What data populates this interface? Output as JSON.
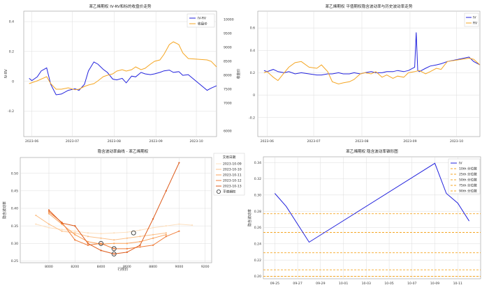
{
  "chart_data": [
    {
      "type": "line",
      "title": "苯乙烯期权 IV-RV和标的收盘价走势",
      "xlabel": "",
      "ylabel": "IV-RV",
      "y2label": "收盘价",
      "x_ticks": [
        "2023-06",
        "2023-07",
        "2023-08",
        "2023-09",
        "2023-10"
      ],
      "y_ticks": [
        -0.2,
        0,
        0.2,
        0.4
      ],
      "y2_ticks": [
        6000,
        7000,
        7500,
        8000,
        8500,
        9000,
        9500,
        10000
      ],
      "ylim": [
        -0.37,
        0.47
      ],
      "y2lim": [
        5800,
        10300
      ],
      "xlim": [
        "2023-05-26",
        "2023-10-16"
      ],
      "legend": "top-right",
      "series": [
        {
          "name": "IV-RV",
          "axis": "left",
          "color": "#2222dd",
          "x": [
            "2023-05-30",
            "2023-06-01",
            "2023-06-05",
            "2023-06-08",
            "2023-06-12",
            "2023-06-15",
            "2023-06-19",
            "2023-06-23",
            "2023-06-28",
            "2023-07-03",
            "2023-07-06",
            "2023-07-10",
            "2023-07-13",
            "2023-07-17",
            "2023-07-20",
            "2023-07-24",
            "2023-07-27",
            "2023-07-31",
            "2023-08-03",
            "2023-08-07",
            "2023-08-10",
            "2023-08-14",
            "2023-08-17",
            "2023-08-21",
            "2023-08-24",
            "2023-08-28",
            "2023-08-31",
            "2023-09-04",
            "2023-09-07",
            "2023-09-11",
            "2023-09-14",
            "2023-09-18",
            "2023-09-21",
            "2023-09-25",
            "2023-10-09",
            "2023-10-12",
            "2023-10-16"
          ],
          "values": [
            0.02,
            0.005,
            0.03,
            0.07,
            0.09,
            -0.02,
            -0.09,
            -0.085,
            -0.06,
            -0.05,
            -0.06,
            -0.02,
            0.07,
            0.13,
            0.115,
            0.08,
            0.06,
            0.015,
            0.01,
            0.02,
            -0.01,
            0.035,
            0.03,
            0.06,
            0.05,
            0.045,
            0.05,
            0.06,
            0.07,
            0.075,
            0.06,
            0.065,
            0.04,
            0.045,
            -0.06,
            -0.045,
            -0.03
          ]
        },
        {
          "name": "收盘价",
          "axis": "right",
          "color": "#f5a623",
          "x": [
            "2023-05-30",
            "2023-06-05",
            "2023-06-12",
            "2023-06-15",
            "2023-06-19",
            "2023-06-23",
            "2023-06-28",
            "2023-07-03",
            "2023-07-06",
            "2023-07-10",
            "2023-07-13",
            "2023-07-17",
            "2023-07-20",
            "2023-07-24",
            "2023-07-27",
            "2023-07-31",
            "2023-08-03",
            "2023-08-07",
            "2023-08-10",
            "2023-08-14",
            "2023-08-17",
            "2023-08-21",
            "2023-08-24",
            "2023-08-28",
            "2023-08-31",
            "2023-09-04",
            "2023-09-07",
            "2023-09-11",
            "2023-09-14",
            "2023-09-18",
            "2023-09-21",
            "2023-09-25",
            "2023-10-09",
            "2023-10-12",
            "2023-10-16"
          ],
          "values": [
            7700,
            7800,
            7950,
            7700,
            7500,
            7500,
            7550,
            7480,
            7500,
            7600,
            7650,
            7700,
            7800,
            7950,
            8000,
            8050,
            8150,
            8200,
            8150,
            8200,
            8300,
            8200,
            8250,
            8400,
            8500,
            8550,
            8750,
            9100,
            9200,
            9100,
            8800,
            8600,
            8550,
            8500,
            8300
          ]
        }
      ]
    },
    {
      "type": "line",
      "title": "苯乙烯期权 平值期权隐含波动率与历史波动率走势",
      "xlabel": "",
      "ylabel": "",
      "x_ticks": [
        "2023-06",
        "2023-07",
        "2023-08",
        "2023-09",
        "2023-10"
      ],
      "y_ticks": [
        -0.2,
        0,
        0.2,
        0.4,
        0.6
      ],
      "ylim": [
        -0.37,
        0.75
      ],
      "xlim": [
        "2023-05-26",
        "2023-10-16"
      ],
      "legend": "top-right",
      "series": [
        {
          "name": "IV",
          "color": "#2222dd",
          "x": [
            "2023-05-30",
            "2023-06-01",
            "2023-06-05",
            "2023-06-08",
            "2023-06-12",
            "2023-06-15",
            "2023-06-19",
            "2023-06-23",
            "2023-06-28",
            "2023-07-03",
            "2023-07-06",
            "2023-07-10",
            "2023-07-13",
            "2023-07-17",
            "2023-07-20",
            "2023-07-24",
            "2023-07-27",
            "2023-07-31",
            "2023-08-03",
            "2023-08-07",
            "2023-08-10",
            "2023-08-14",
            "2023-08-17",
            "2023-08-21",
            "2023-08-24",
            "2023-08-28",
            "2023-08-31",
            "2023-09-04",
            "2023-09-05",
            "2023-09-06",
            "2023-09-07",
            "2023-09-11",
            "2023-09-14",
            "2023-09-18",
            "2023-09-21",
            "2023-09-25",
            "2023-10-09",
            "2023-10-12",
            "2023-10-16"
          ],
          "values": [
            0.22,
            0.21,
            0.23,
            0.21,
            0.2,
            0.21,
            0.19,
            0.2,
            0.19,
            0.18,
            0.18,
            0.19,
            0.19,
            0.2,
            0.19,
            0.19,
            0.2,
            0.19,
            0.2,
            0.21,
            0.2,
            0.2,
            0.21,
            0.21,
            0.22,
            0.21,
            0.22,
            0.25,
            0.56,
            0.22,
            0.21,
            0.24,
            0.26,
            0.27,
            0.28,
            0.3,
            0.34,
            0.3,
            0.27
          ]
        },
        {
          "name": "RV",
          "color": "#f5a623",
          "x": [
            "2023-05-30",
            "2023-06-01",
            "2023-06-05",
            "2023-06-08",
            "2023-06-12",
            "2023-06-15",
            "2023-06-19",
            "2023-06-23",
            "2023-06-28",
            "2023-07-03",
            "2023-07-06",
            "2023-07-10",
            "2023-07-13",
            "2023-07-17",
            "2023-07-20",
            "2023-07-24",
            "2023-07-27",
            "2023-07-31",
            "2023-08-03",
            "2023-08-07",
            "2023-08-10",
            "2023-08-14",
            "2023-08-17",
            "2023-08-21",
            "2023-08-24",
            "2023-08-28",
            "2023-08-31",
            "2023-09-04",
            "2023-09-07",
            "2023-09-11",
            "2023-09-14",
            "2023-09-18",
            "2023-09-21",
            "2023-09-25",
            "2023-10-09",
            "2023-10-12",
            "2023-10-16"
          ],
          "values": [
            0.2,
            0.21,
            0.16,
            0.13,
            0.2,
            0.25,
            0.29,
            0.3,
            0.25,
            0.24,
            0.27,
            0.21,
            0.12,
            0.1,
            0.11,
            0.12,
            0.14,
            0.19,
            0.2,
            0.19,
            0.21,
            0.16,
            0.18,
            0.15,
            0.17,
            0.16,
            0.2,
            0.21,
            0.22,
            0.19,
            0.21,
            0.24,
            0.23,
            0.3,
            0.33,
            0.32,
            0.27
          ]
        }
      ]
    },
    {
      "type": "line",
      "title": "隐含波动率曲线 - 苯乙烯期权",
      "xlabel": "行权价",
      "ylabel": "隐含波动率",
      "x_ticks": [
        8000,
        8200,
        8400,
        8600,
        8800,
        9000,
        9200
      ],
      "y_ticks": [
        0.25,
        0.3,
        0.35,
        0.4,
        0.45,
        0.5
      ],
      "xlim": [
        7780,
        9250
      ],
      "ylim": [
        0.245,
        0.545
      ],
      "legend": "right-outside",
      "legend_title": "交易日期",
      "series": [
        {
          "name": "2023-10-09",
          "color": "#fde0c0",
          "x": [
            7900,
            8000,
            8100,
            8200,
            8300,
            8400,
            8500,
            8600,
            8700,
            8800,
            8900,
            9000,
            9100
          ],
          "values": [
            0.355,
            0.345,
            0.34,
            0.335,
            0.33,
            0.328,
            0.33,
            0.332,
            0.338,
            0.345,
            0.35,
            0.355,
            0.352
          ]
        },
        {
          "name": "2023-10-10",
          "color": "#fcc18a",
          "x": [
            7900,
            8000,
            8100,
            8200,
            8300,
            8400,
            8500,
            8600,
            8700,
            8800,
            8900
          ],
          "values": [
            0.38,
            0.355,
            0.335,
            0.33,
            0.32,
            0.315,
            0.31,
            0.315,
            0.32,
            0.325,
            0.33
          ]
        },
        {
          "name": "2023-10-11",
          "color": "#f9a15a",
          "x": [
            8000,
            8100,
            8200,
            8300,
            8400,
            8500,
            8600,
            8700,
            8800,
            8900
          ],
          "values": [
            0.385,
            0.355,
            0.325,
            0.305,
            0.298,
            0.3,
            0.3,
            0.305,
            0.315,
            0.325
          ]
        },
        {
          "name": "2023-10-12",
          "color": "#ef7d3a",
          "x": [
            8000,
            8100,
            8200,
            8300,
            8400,
            8500,
            8600,
            8700,
            8800,
            8900,
            9000
          ],
          "values": [
            0.39,
            0.36,
            0.31,
            0.295,
            0.3,
            0.285,
            0.285,
            0.29,
            0.295,
            0.32,
            0.335
          ]
        },
        {
          "name": "2023-10-13",
          "color": "#dd5a1a",
          "x": [
            8000,
            8100,
            8200,
            8300,
            8400,
            8500,
            8600,
            8700,
            8800,
            8900,
            9000
          ],
          "values": [
            0.395,
            0.358,
            0.35,
            0.3,
            0.28,
            0.27,
            0.275,
            0.295,
            0.37,
            0.45,
            0.53
          ]
        }
      ],
      "atm_points": {
        "name": "平值期权",
        "x": [
          8400,
          8500,
          8500,
          8650
        ],
        "values": [
          0.3,
          0.285,
          0.27,
          0.33
        ]
      }
    },
    {
      "type": "line",
      "title": "苯乙烯期权 隐含波动率锥形图",
      "xlabel": "",
      "ylabel": "隐含波动率",
      "x_ticks": [
        "09-25",
        "09-27",
        "09-29",
        "10-01",
        "10-03",
        "10-05",
        "10-07",
        "10-09",
        "10-11"
      ],
      "y_ticks": [
        0.2,
        0.22,
        0.24,
        0.26,
        0.28,
        0.3,
        0.32,
        0.34
      ],
      "xlim": [
        "2023-09-24",
        "2023-10-13"
      ],
      "ylim": [
        0.197,
        0.347
      ],
      "legend": "top-right",
      "series": [
        {
          "name": "IV",
          "color": "#2222dd",
          "x": [
            "2023-09-25",
            "2023-09-26",
            "2023-09-28",
            "2023-10-09",
            "2023-10-10",
            "2023-10-11",
            "2023-10-12"
          ],
          "values": [
            0.302,
            0.286,
            0.242,
            0.339,
            0.302,
            0.29,
            0.268
          ]
        }
      ],
      "quantiles": [
        {
          "name": "10th  分位数",
          "value": 0.2,
          "color": "#f5a623"
        },
        {
          "name": "25th  分位数",
          "value": 0.208,
          "color": "#f5a623"
        },
        {
          "name": "50th  分位数",
          "value": 0.229,
          "color": "#f5a623"
        },
        {
          "name": "75th  分位数",
          "value": 0.254,
          "color": "#f5a623"
        },
        {
          "name": "90th  分位数",
          "value": 0.277,
          "color": "#f5a623"
        }
      ]
    }
  ]
}
